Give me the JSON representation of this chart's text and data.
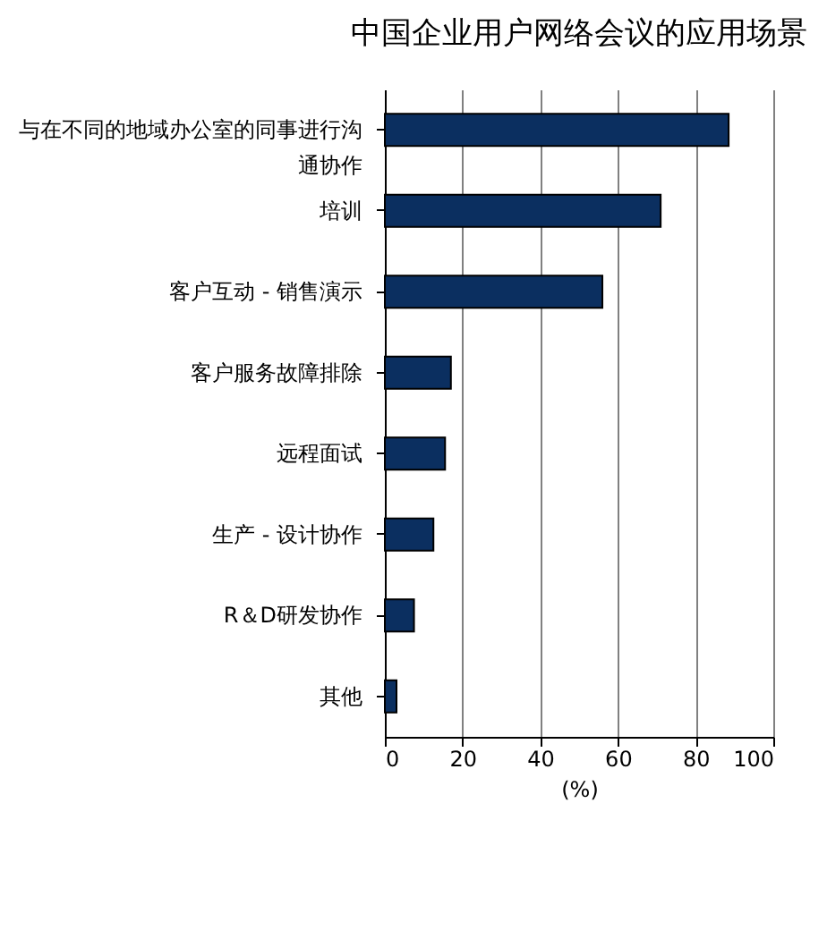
{
  "chart_data": {
    "type": "bar",
    "orientation": "horizontal",
    "title": "中国企业用户网络会议的应用场景",
    "xlabel": "(%)",
    "categories": [
      "与在不同的地域办公室的同事进行沟通协作",
      "培训",
      "客户互动 - 销售演示",
      "客户服务故障排除",
      "远程面试",
      "生产 - 设计协作",
      "R＆D研发协作",
      "其他"
    ],
    "values": [
      88.5,
      71,
      56,
      17,
      15.5,
      12.5,
      7.5,
      3
    ],
    "color": "#0b2f60",
    "xlim": [
      0,
      100
    ],
    "xticks": [
      0,
      20,
      40,
      60,
      80,
      100
    ],
    "grid": "x"
  }
}
